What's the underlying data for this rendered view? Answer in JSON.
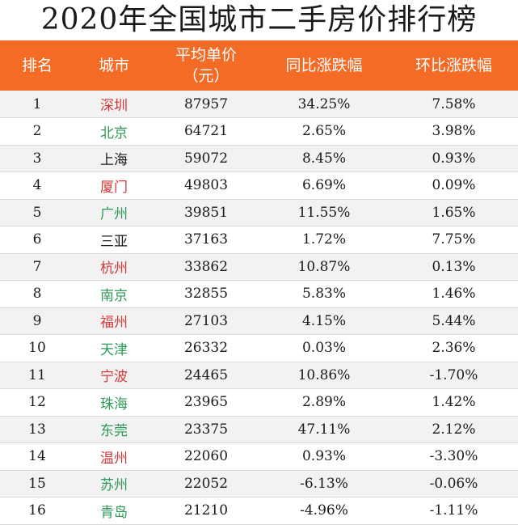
{
  "title": "2020年全国城市二手房价排行榜",
  "colors": {
    "header_bg": "#f46b26",
    "red": "#d23a3a",
    "green": "#2e9a56",
    "black": "#1a1a1a"
  },
  "headers": {
    "rank": "排名",
    "city": "城市",
    "price_line1": "平均单价",
    "price_line2": "（元）",
    "yoy": "同比涨跌幅",
    "mom": "环比涨跌幅"
  },
  "rows": [
    {
      "rank": "1",
      "city": "深圳",
      "city_color": "red",
      "price": "87957",
      "yoy": "34.25%",
      "mom": "7.58%"
    },
    {
      "rank": "2",
      "city": "北京",
      "city_color": "green",
      "price": "64721",
      "yoy": "2.65%",
      "mom": "3.98%"
    },
    {
      "rank": "3",
      "city": "上海",
      "city_color": "black",
      "price": "59072",
      "yoy": "8.45%",
      "mom": "0.93%"
    },
    {
      "rank": "4",
      "city": "厦门",
      "city_color": "red",
      "price": "49803",
      "yoy": "6.69%",
      "mom": "0.09%"
    },
    {
      "rank": "5",
      "city": "广州",
      "city_color": "green",
      "price": "39851",
      "yoy": "11.55%",
      "mom": "1.65%"
    },
    {
      "rank": "6",
      "city": "三亚",
      "city_color": "black",
      "price": "37163",
      "yoy": "1.72%",
      "mom": "7.75%"
    },
    {
      "rank": "7",
      "city": "杭州",
      "city_color": "red",
      "price": "33862",
      "yoy": "10.87%",
      "mom": "0.13%"
    },
    {
      "rank": "8",
      "city": "南京",
      "city_color": "green",
      "price": "32855",
      "yoy": "5.83%",
      "mom": "1.46%"
    },
    {
      "rank": "9",
      "city": "福州",
      "city_color": "red",
      "price": "27103",
      "yoy": "4.15%",
      "mom": "5.44%"
    },
    {
      "rank": "10",
      "city": "天津",
      "city_color": "green",
      "price": "26332",
      "yoy": "0.03%",
      "mom": "2.36%"
    },
    {
      "rank": "11",
      "city": "宁波",
      "city_color": "red",
      "price": "24465",
      "yoy": "10.86%",
      "mom": "-1.70%"
    },
    {
      "rank": "12",
      "city": "珠海",
      "city_color": "green",
      "price": "23965",
      "yoy": "2.89%",
      "mom": "1.42%"
    },
    {
      "rank": "13",
      "city": "东莞",
      "city_color": "green",
      "price": "23375",
      "yoy": "47.11%",
      "mom": "2.12%"
    },
    {
      "rank": "14",
      "city": "温州",
      "city_color": "red",
      "price": "22060",
      "yoy": "0.93%",
      "mom": "-3.30%"
    },
    {
      "rank": "15",
      "city": "苏州",
      "city_color": "green",
      "price": "22052",
      "yoy": "-6.13%",
      "mom": "-0.06%"
    },
    {
      "rank": "16",
      "city": "青岛",
      "city_color": "green",
      "price": "21210",
      "yoy": "-4.96%",
      "mom": "-1.11%"
    }
  ]
}
